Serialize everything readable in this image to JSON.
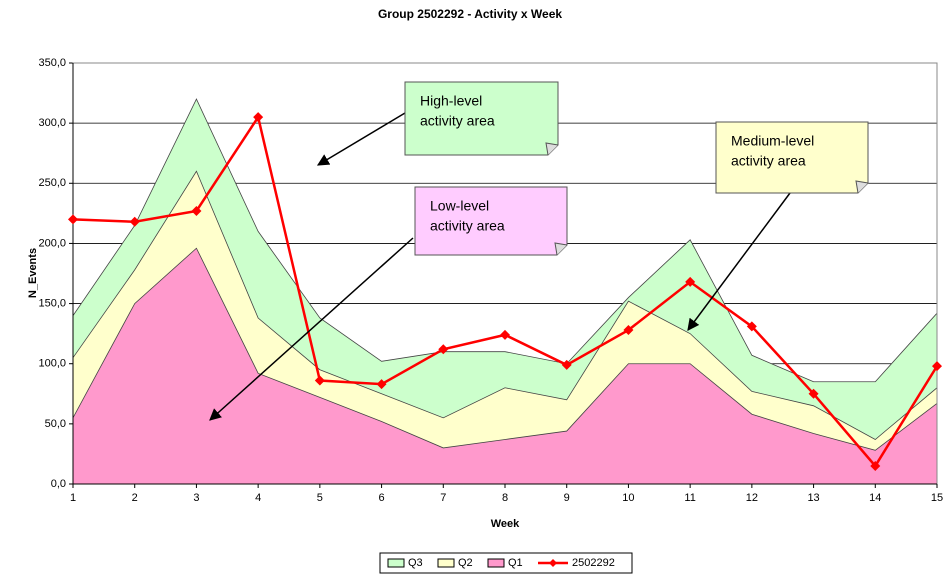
{
  "chart_data": {
    "type": "area",
    "title": "Group 2502292 - Activity x Week",
    "xlabel": "Week",
    "ylabel": "N_Events",
    "categories": [
      "1",
      "2",
      "3",
      "4",
      "5",
      "6",
      "7",
      "8",
      "9",
      "10",
      "11",
      "12",
      "13",
      "14",
      "15"
    ],
    "series": [
      {
        "name": "Q3",
        "color": "#ccffcc",
        "values": [
          140,
          215,
          320,
          210,
          138,
          102,
          110,
          110,
          100,
          155,
          203,
          107,
          85,
          85,
          142
        ]
      },
      {
        "name": "Q2",
        "color": "#ffffcc",
        "values": [
          105,
          178,
          260,
          138,
          95,
          75,
          55,
          80,
          70,
          152,
          125,
          77,
          65,
          37,
          80
        ]
      },
      {
        "name": "Q1",
        "color": "#ff99cc",
        "values": [
          55,
          150,
          196,
          92,
          72,
          52,
          30,
          37,
          44,
          100,
          100,
          58,
          42,
          28,
          67
        ]
      },
      {
        "name": "2502292",
        "type": "line",
        "color": "#ff0000",
        "values": [
          220,
          218,
          227,
          305,
          86,
          83,
          112,
          124,
          99,
          128,
          168,
          131,
          75,
          15,
          98
        ]
      }
    ],
    "ylim": [
      0,
      350
    ],
    "yticks": [
      {
        "value": 0,
        "label": "0,0"
      },
      {
        "value": 50,
        "label": "50,0"
      },
      {
        "value": 100,
        "label": "100,0"
      },
      {
        "value": 150,
        "label": "150,0"
      },
      {
        "value": 200,
        "label": "200,0"
      },
      {
        "value": 250,
        "label": "250,0"
      },
      {
        "value": 300,
        "label": "300,0"
      },
      {
        "value": 350,
        "label": "350,0"
      }
    ],
    "grid": true,
    "legend": "bottom",
    "annotations": [
      {
        "lines": [
          "High-level",
          "activity area"
        ],
        "color": "#ccffcc"
      },
      {
        "lines": [
          "Low-level",
          "activity area"
        ],
        "color": "#ffccff"
      },
      {
        "lines": [
          "Medium-level",
          "activity area"
        ],
        "color": "#ffffcc"
      }
    ]
  }
}
